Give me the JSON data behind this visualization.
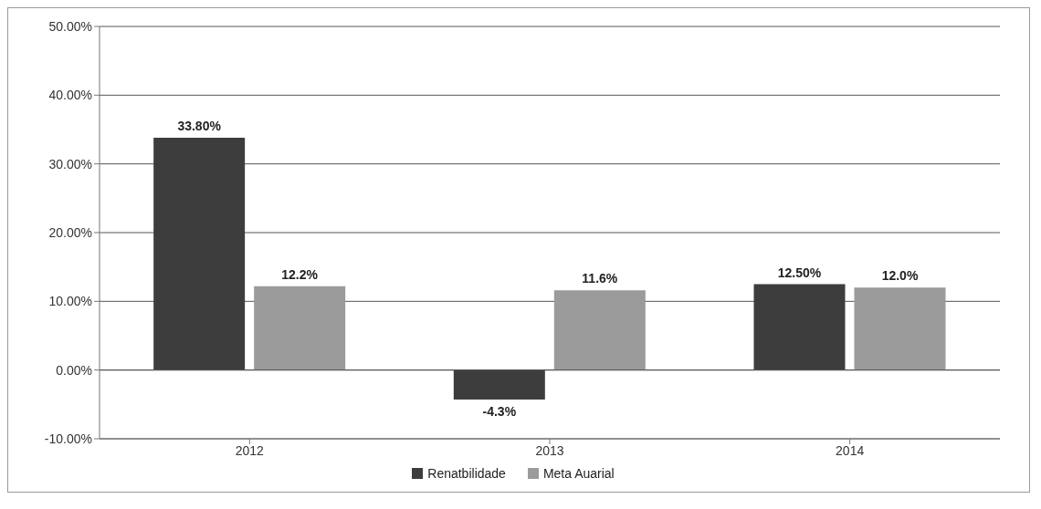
{
  "chart_data": {
    "type": "bar",
    "categories": [
      "2012",
      "2013",
      "2014"
    ],
    "series": [
      {
        "name": "Renatbilidade",
        "color": "#3d3d3d",
        "values": [
          33.8,
          -4.3,
          12.5
        ],
        "value_labels": [
          "33.80%",
          "-4.3%",
          "12.50%"
        ]
      },
      {
        "name": "Meta Auarial",
        "color": "#9b9b9b",
        "values": [
          12.2,
          11.6,
          12.0
        ],
        "value_labels": [
          "12.2%",
          "11.6%",
          "12.0%"
        ]
      }
    ],
    "ylim": [
      -10,
      50
    ],
    "yticks": [
      {
        "value": -10,
        "label": "-10.00%"
      },
      {
        "value": 0,
        "label": "0.00%"
      },
      {
        "value": 10,
        "label": "10.00%"
      },
      {
        "value": 20,
        "label": "20.00%"
      },
      {
        "value": 30,
        "label": "30.00%"
      },
      {
        "value": 40,
        "label": "40.00%"
      },
      {
        "value": 50,
        "label": "50.00%"
      }
    ],
    "grid": "y",
    "legend": "bottom"
  }
}
